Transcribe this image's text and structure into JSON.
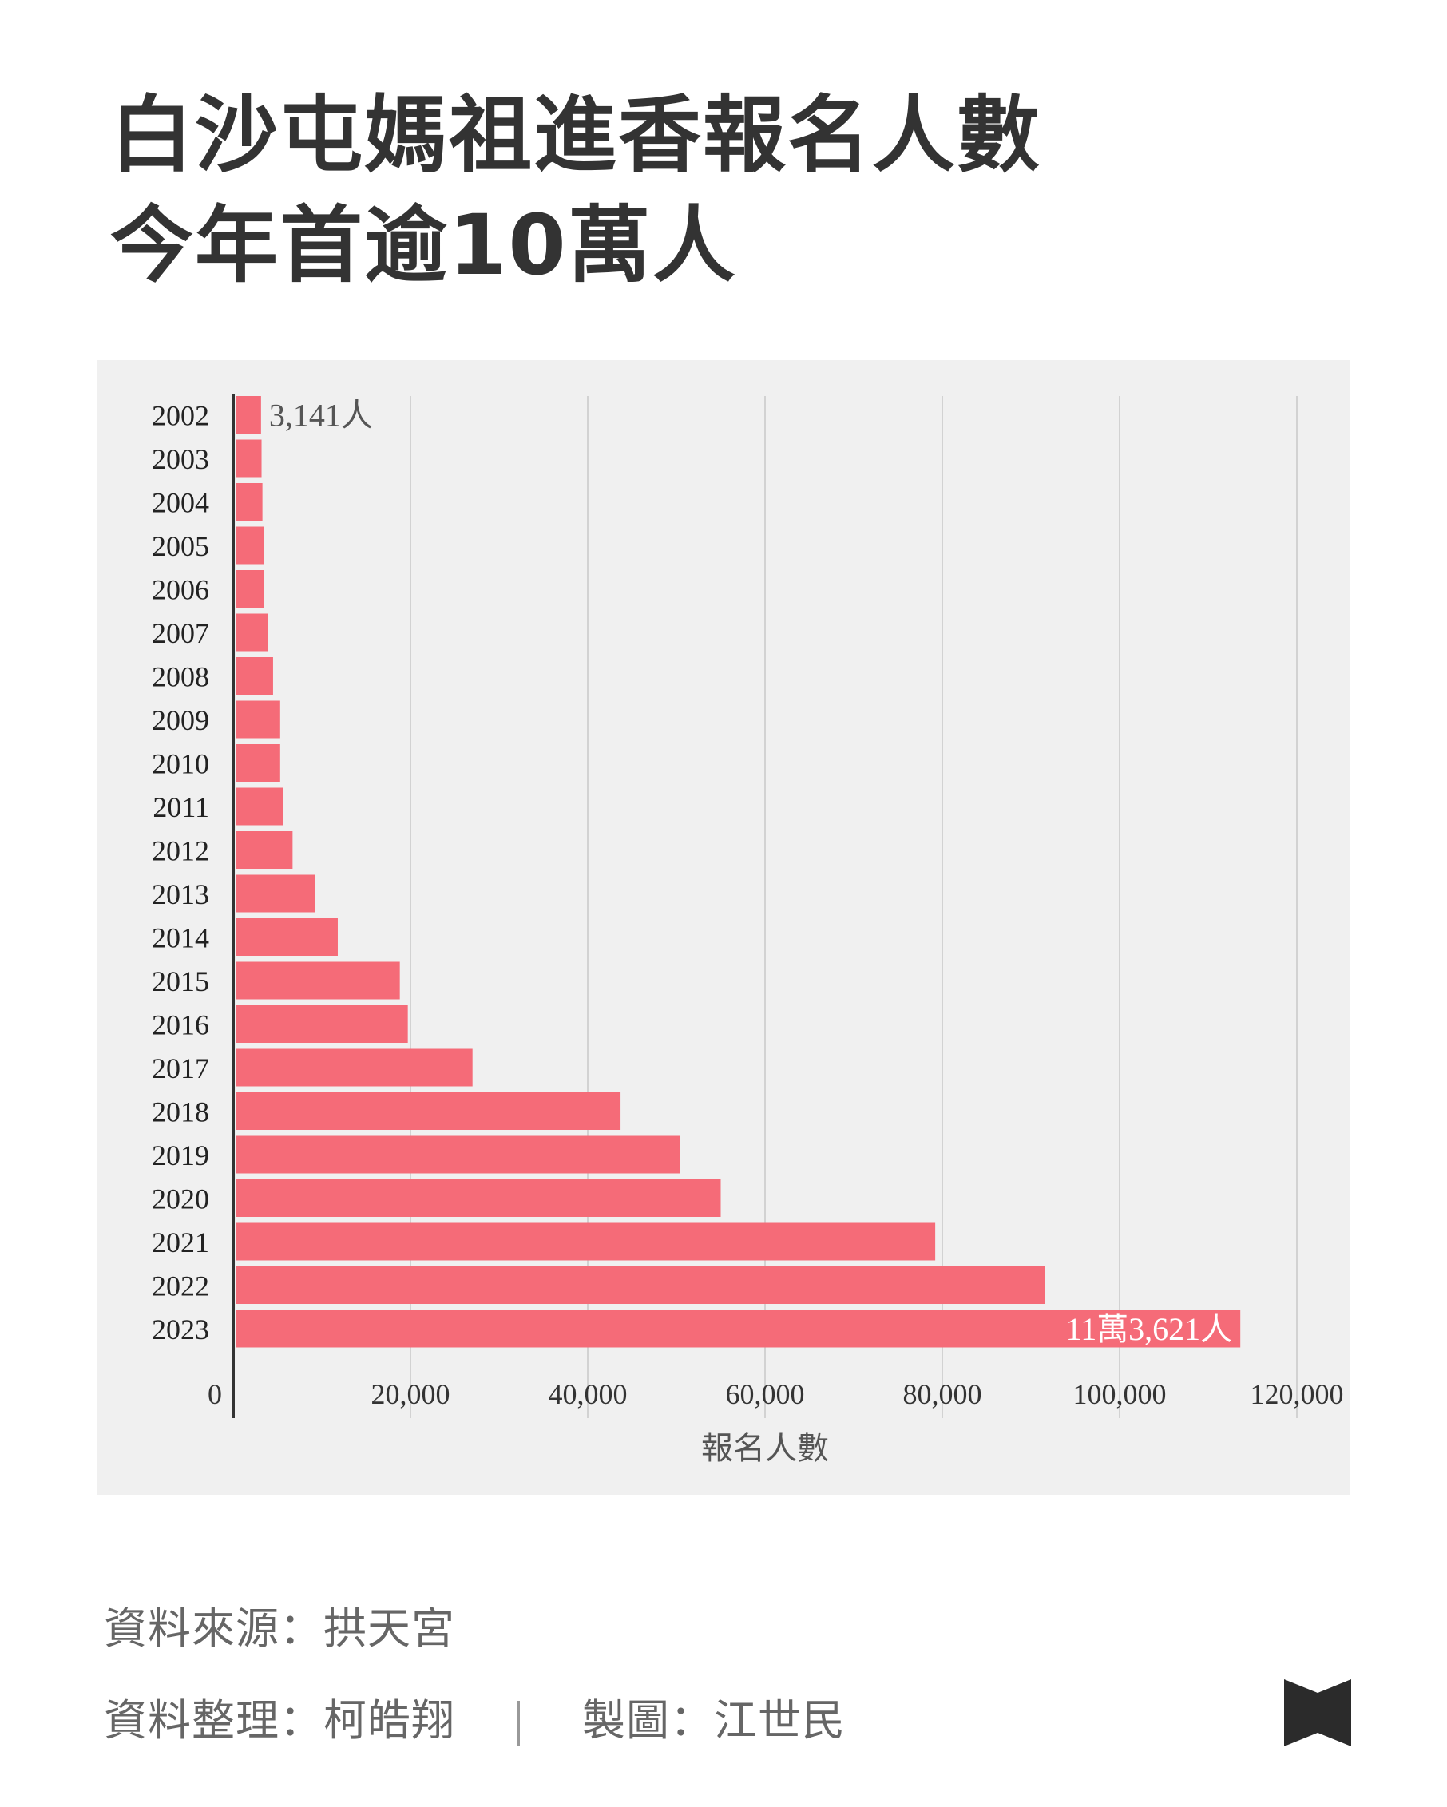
{
  "title": {
    "line1": "白沙屯媽祖進香報名人數",
    "line2": "今年首逾10萬人"
  },
  "footer": {
    "source": "資料來源：拱天宮",
    "data_editor": "資料整理：柯皓翔",
    "graphic": "製圖：江世民"
  },
  "icons": {
    "logo": "publisher-logo-icon"
  },
  "colors": {
    "bar": "#f56b78",
    "grid": "#d2d2d2",
    "axis": "#333333",
    "panel": "#f0f0f0"
  },
  "chart_data": {
    "type": "bar",
    "orientation": "horizontal",
    "title": "",
    "xlabel": "報名人數",
    "ylabel": "",
    "xlim": [
      0,
      120000
    ],
    "xticks": [
      0,
      20000,
      40000,
      60000,
      80000,
      100000,
      120000
    ],
    "xtick_labels": [
      "0",
      "20,000",
      "40,000",
      "60,000",
      "80,000",
      "100,000",
      "120,000"
    ],
    "grid": "vertical",
    "categories": [
      "2002",
      "2003",
      "2004",
      "2005",
      "2006",
      "2007",
      "2008",
      "2009",
      "2010",
      "2011",
      "2012",
      "2013",
      "2014",
      "2015",
      "2016",
      "2017",
      "2018",
      "2019",
      "2020",
      "2021",
      "2022",
      "2023"
    ],
    "values": [
      3141,
      3200,
      3300,
      3500,
      3500,
      3900,
      4500,
      5300,
      5300,
      5600,
      6700,
      9200,
      11800,
      18800,
      19700,
      27000,
      43700,
      50400,
      55000,
      79200,
      91600,
      113621
    ],
    "data_labels": [
      {
        "category": "2002",
        "text": "3,141人",
        "position": "outside"
      },
      {
        "category": "2023",
        "text": "11萬3,621人",
        "position": "inside"
      }
    ]
  }
}
